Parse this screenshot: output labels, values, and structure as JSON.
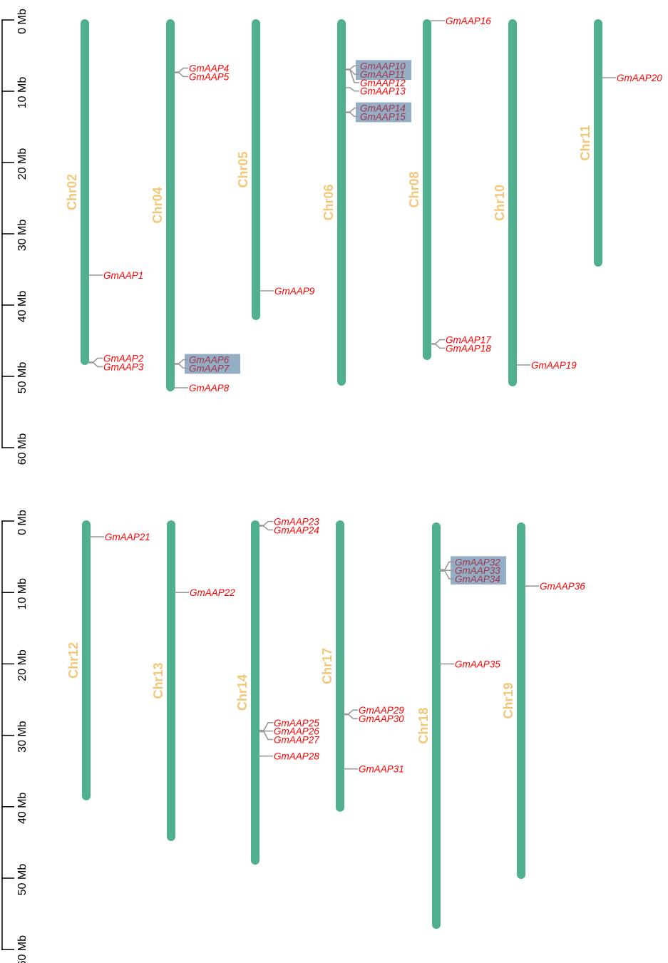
{
  "colors": {
    "chromosome": "#4faf8f",
    "chromosome_label": "#f2c77a",
    "gene_label": "#ff0000",
    "highlight_bg": "#94aec4",
    "highlight_text": "#a0354f",
    "connector": "#9a9a9a",
    "axis": "#000000"
  },
  "axis": {
    "unit": "Mb",
    "ticks": [
      "0 Mb",
      "10 Mb",
      "20 Mb",
      "30 Mb",
      "40 Mb",
      "50 Mb",
      "60 Mb"
    ],
    "range": [
      0,
      60
    ]
  },
  "panels": [
    {
      "chromosomes": [
        {
          "name": "Chr02",
          "length": 48.3,
          "genes": [
            {
              "name": "GmAAP1",
              "pos": 35.8
            },
            {
              "name": "GmAAP2",
              "pos": 48.0
            },
            {
              "name": "GmAAP3",
              "pos": 48.1
            }
          ]
        },
        {
          "name": "Chr04",
          "length": 52.0,
          "genes": [
            {
              "name": "GmAAP4",
              "pos": 7.3
            },
            {
              "name": "GmAAP5",
              "pos": 7.4
            },
            {
              "name": "GmAAP6",
              "pos": 48.2,
              "highlighted": true
            },
            {
              "name": "GmAAP7",
              "pos": 48.3,
              "highlighted": true
            },
            {
              "name": "GmAAP8",
              "pos": 51.6
            }
          ]
        },
        {
          "name": "Chr05",
          "length": 42.0,
          "genes": [
            {
              "name": "GmAAP9",
              "pos": 38.0
            }
          ]
        },
        {
          "name": "Chr06",
          "length": 51.2,
          "genes": [
            {
              "name": "GmAAP10",
              "pos": 6.9,
              "highlighted": true
            },
            {
              "name": "GmAAP11",
              "pos": 6.95,
              "highlighted": true
            },
            {
              "name": "GmAAP12",
              "pos": 7.0
            },
            {
              "name": "GmAAP13",
              "pos": 9.5
            },
            {
              "name": "GmAAP14",
              "pos": 12.9,
              "highlighted": true
            },
            {
              "name": "GmAAP15",
              "pos": 13.0,
              "highlighted": true
            }
          ]
        },
        {
          "name": "Chr08",
          "length": 47.6,
          "genes": [
            {
              "name": "GmAAP16",
              "pos": 0.1
            },
            {
              "name": "GmAAP17",
              "pos": 45.4
            },
            {
              "name": "GmAAP18",
              "pos": 45.5
            }
          ]
        },
        {
          "name": "Chr10",
          "length": 51.3,
          "genes": [
            {
              "name": "GmAAP19",
              "pos": 48.4
            }
          ]
        },
        {
          "name": "Chr11",
          "length": 34.5,
          "genes": [
            {
              "name": "GmAAP20",
              "pos": 8.1
            }
          ]
        }
      ]
    },
    {
      "chromosomes": [
        {
          "name": "Chr12",
          "length": 39.0,
          "genes": [
            {
              "name": "GmAAP21",
              "pos": 2.2
            }
          ]
        },
        {
          "name": "Chr13",
          "length": 44.7,
          "genes": [
            {
              "name": "GmAAP22",
              "pos": 10.0
            }
          ]
        },
        {
          "name": "Chr14",
          "length": 48.0,
          "genes": [
            {
              "name": "GmAAP23",
              "pos": 0.6
            },
            {
              "name": "GmAAP24",
              "pos": 0.7
            },
            {
              "name": "GmAAP25",
              "pos": 29.3
            },
            {
              "name": "GmAAP26",
              "pos": 29.4
            },
            {
              "name": "GmAAP27",
              "pos": 29.5
            },
            {
              "name": "GmAAP28",
              "pos": 32.9
            }
          ]
        },
        {
          "name": "Chr17",
          "length": 40.6,
          "genes": [
            {
              "name": "GmAAP29",
              "pos": 27.0
            },
            {
              "name": "GmAAP30",
              "pos": 27.1
            },
            {
              "name": "GmAAP31",
              "pos": 34.7
            }
          ]
        },
        {
          "name": "Chr18",
          "start": 0.3,
          "length": 57.0,
          "genes": [
            {
              "name": "GmAAP32",
              "pos": 6.8,
              "highlighted": true
            },
            {
              "name": "GmAAP33",
              "pos": 6.9,
              "highlighted": true
            },
            {
              "name": "GmAAP34",
              "pos": 7.0,
              "highlighted": true
            },
            {
              "name": "GmAAP35",
              "pos": 20.0
            }
          ]
        },
        {
          "name": "Chr19",
          "start": 0.3,
          "length": 50.0,
          "genes": [
            {
              "name": "GmAAP36",
              "pos": 9.1
            }
          ]
        }
      ]
    }
  ]
}
